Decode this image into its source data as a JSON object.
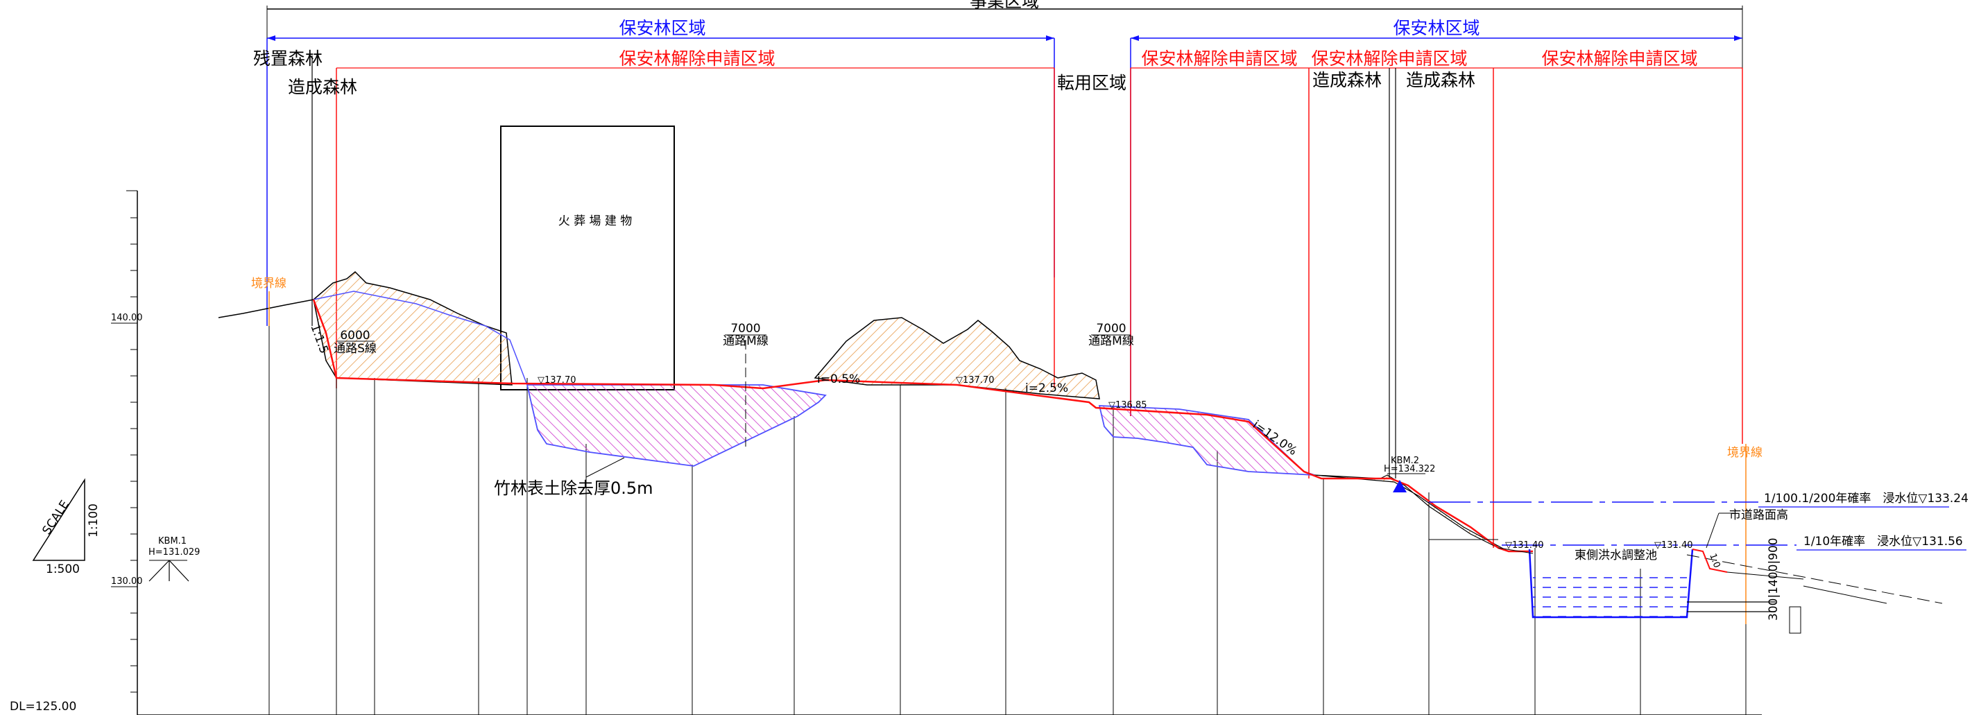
{
  "header": {
    "project_area": "事業区域",
    "protection_forest_left": "保安林区域",
    "protection_forest_right": "保安林区域",
    "remaining_forest": "残置森林",
    "created_forest_left": "造成森林",
    "release_area_main": "保安林解除申請区域",
    "conversion_area": "転用区域",
    "release_area_r1": "保安林解除申請区域",
    "release_area_r2": "保安林解除申請区域",
    "release_area_r3": "保安林解除申請区域",
    "created_forest_r1": "造成森林",
    "created_forest_r2": "造成森林"
  },
  "labels": {
    "building": "火 葬 場 建 物",
    "boundary_left": "境界線",
    "boundary_right": "境界線",
    "slope_ratio": "1:1.5",
    "road_s_width": "6000",
    "road_s_name": "通路S線",
    "road_m1_width": "7000",
    "road_m1_name": "通路M線",
    "road_m2_width": "7000",
    "road_m2_name": "通路M線",
    "grade_1": "i=0.5%",
    "grade_2": "i=2.5%",
    "grade_3": "i=12.0%",
    "elev_1": "▽137.70",
    "elev_2": "▽137.70",
    "elev_3": "▽136.85",
    "elev_pond_l": "▽131.40",
    "elev_pond_r": "▽131.40",
    "kbm2_name": "KBM.2",
    "kbm2_height": "H=134.322",
    "bamboo_note": "竹林表土除去厚0.5m",
    "flood_100": "1/100.1/200年確率　浸水位▽133.24",
    "flood_10": "1/10年確率　浸水位▽131.56",
    "city_road": "市道路面高",
    "pond": "東側洪水調整池",
    "pond_slope": "1:0",
    "pond_dims": "300|1400|900",
    "kbm1_name": "KBM.1",
    "kbm1_height": "H=131.029"
  },
  "scale": {
    "title": "SCALE",
    "vertical": "1:100",
    "horizontal": "1:500",
    "tick_140": "140.00",
    "tick_130": "130.00",
    "datum": "DL=125.00"
  },
  "colors": {
    "protection_forest": "#1010ff",
    "release_area": "#ff1010",
    "boundary": "#ff8a1a",
    "cut_hatch": "#e89a4a",
    "fill_hatch": "#d040d0",
    "water": "#2020ff"
  }
}
